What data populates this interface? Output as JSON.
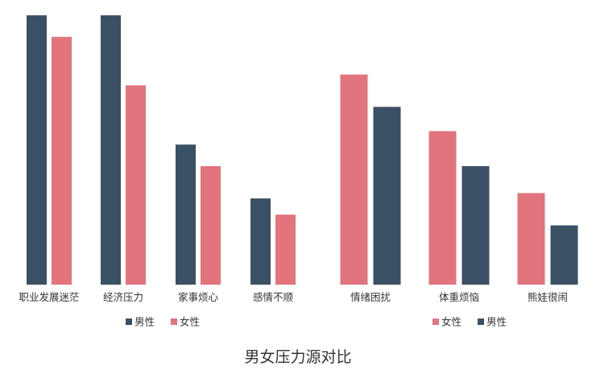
{
  "colors": {
    "male": "#3a5064",
    "female": "#e1747d",
    "text": "#333333"
  },
  "chart_data": [
    {
      "type": "bar",
      "title": "男女压力源对比",
      "categories": [
        "职业发展迷茫",
        "经济压力",
        "家事烦心",
        "感情不顺"
      ],
      "ylim": [
        0,
        100
      ],
      "grid": false,
      "legend": "bottom-center",
      "series": [
        {
          "name": "男性",
          "color": "#3a5064",
          "values": [
            100,
            100,
            52,
            32
          ]
        },
        {
          "name": "女性",
          "color": "#e1747d",
          "values": [
            92,
            74,
            44,
            26
          ]
        }
      ]
    },
    {
      "type": "bar",
      "categories": [
        "情绪困扰",
        "体重烦恼",
        "熊娃很闹"
      ],
      "ylim": [
        0,
        100
      ],
      "grid": false,
      "legend": "bottom-center",
      "series": [
        {
          "name": "女性",
          "color": "#e1747d",
          "values": [
            78,
            57,
            34
          ]
        },
        {
          "name": "男性",
          "color": "#3a5064",
          "values": [
            66,
            44,
            22
          ]
        }
      ]
    }
  ]
}
